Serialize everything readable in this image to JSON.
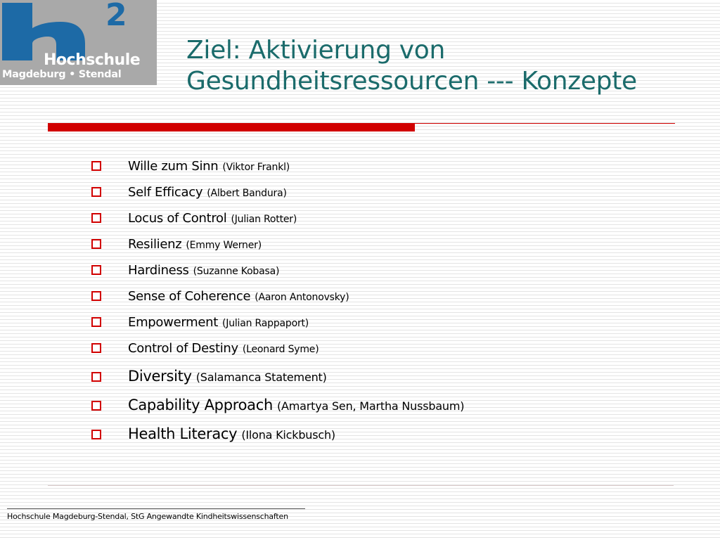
{
  "logo": {
    "text_line1": "Hochschule",
    "text_line2": "Magdeburg • Stendal",
    "superscript": "2",
    "colors": {
      "background": "#a9a9a9",
      "mark": "#1d6aa6",
      "text": "#ffffff"
    }
  },
  "title": {
    "line1": "Ziel: Aktivierung von",
    "line2": "Gesundheitsressourcen --- Konzepte",
    "color": "#1b6b6b"
  },
  "bullets": [
    {
      "concept": "Wille zum Sinn",
      "author": "(Viktor Frankl)"
    },
    {
      "concept": "Self Efficacy",
      "author": "(Albert Bandura)"
    },
    {
      "concept": "Locus of Control",
      "author": "(Julian Rotter)"
    },
    {
      "concept": "Resilienz",
      "author": "(Emmy Werner)"
    },
    {
      "concept": "Hardiness",
      "author": "(Suzanne Kobasa)"
    },
    {
      "concept": "Sense of Coherence",
      "author": "(Aaron Antonovsky)"
    },
    {
      "concept": "Empowerment",
      "author": "(Julian Rappaport)"
    },
    {
      "concept": "Control of Destiny",
      "author": "(Leonard Syme)"
    },
    {
      "concept": "Diversity",
      "author": "(Salamanca Statement)"
    },
    {
      "concept": "Capability Approach",
      "author": "(Amartya Sen, Martha Nussbaum)"
    },
    {
      "concept": "Health Literacy",
      "author": "(Ilona Kickbusch)"
    }
  ],
  "icons": {
    "bullet": "hollow-square-icon"
  },
  "accent_color": "#d10000",
  "footer": {
    "text": "Hochschule Magdeburg-Stendal, StG Angewandte Kindheitswissenschaften"
  }
}
